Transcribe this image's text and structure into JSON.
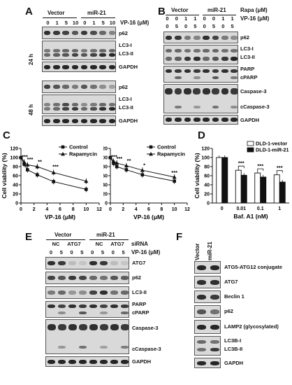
{
  "panels": {
    "A": {
      "label": "A",
      "group_vector": "Vector",
      "group_mir": "miR-21",
      "doses": [
        "0",
        "1",
        "5",
        "10",
        "0",
        "1",
        "5",
        "10"
      ],
      "treatment_label": "VP-16 (μM)",
      "time_24": "24 h",
      "time_48": "48 h",
      "rows_24": [
        "p62",
        "LC3-I",
        "LC3-II",
        "GAPDH"
      ],
      "rows_48": [
        "p62",
        "LC3-I",
        "LC3-II",
        "GAPDH"
      ]
    },
    "B": {
      "label": "B",
      "group_vector": "Vector",
      "group_mir": "miR-21",
      "rapa_label": "Rapa (μM)",
      "rapa": [
        "0",
        "0",
        "1",
        "1",
        "0",
        "0",
        "1",
        "1"
      ],
      "vp_label": "VP-16 (μM)",
      "vp": [
        "0",
        "5",
        "0",
        "5",
        "0",
        "5",
        "0",
        "5"
      ],
      "rows": [
        "p62",
        "LC3-I",
        "LC3-II",
        "PARP",
        "cPARP",
        "Caspase-3",
        "cCaspase-3",
        "GAPDH"
      ]
    },
    "C": {
      "label": "C",
      "ylabel": "Cell viability (%)",
      "xlabel": "VP-16 (μM)"
    },
    "D": {
      "label": "D",
      "ylabel": "Cell viability (%)",
      "xlabel": "Baf. A1 (nM)"
    },
    "E": {
      "label": "E",
      "group_vector": "Vector",
      "group_mir": "miR-21",
      "sirna_label": "siRNA",
      "sirna": [
        "NC",
        "ATG7",
        "NC",
        "ATG7"
      ],
      "vp_label": "VP-16 (μM)",
      "vp": [
        "0",
        "5",
        "0",
        "5",
        "0",
        "5",
        "0",
        "5"
      ],
      "rows": [
        "ATG7",
        "p62",
        "LC3-II",
        "PARP",
        "cPARP",
        "Caspase-3",
        "cCaspase-3",
        "GAPDH"
      ]
    },
    "F": {
      "label": "F",
      "lanes": [
        "Vector",
        "miR-21"
      ],
      "rows": [
        "ATG5-ATG12 conjugate",
        "ATG7",
        "Beclin 1",
        "p62",
        "LAMP2 (glycosylated)",
        "LC3B-I",
        "LC3B-II",
        "GAPDH"
      ]
    }
  },
  "chart_data": [
    {
      "type": "line",
      "xlabel": "VP-16 (μM)",
      "ylabel": "Cell viability (%)",
      "xlim": [
        0,
        12
      ],
      "ylim": [
        0,
        120
      ],
      "xticks": [
        "0",
        "2",
        "4",
        "6",
        "8",
        "10",
        "12"
      ],
      "yticks": [
        "0",
        "20",
        "40",
        "60",
        "80",
        "100",
        "120"
      ],
      "legend_position": "top-right",
      "series": [
        {
          "name": "Control",
          "marker": "square",
          "x": [
            0,
            0.5,
            1,
            2.5,
            5,
            10
          ],
          "y": [
            100,
            85,
            73,
            62,
            47,
            30
          ]
        },
        {
          "name": "Rapamycin",
          "marker": "triangle",
          "x": [
            0,
            0.5,
            1,
            2.5,
            5,
            10
          ],
          "y": [
            100,
            90,
            84,
            80,
            67,
            48
          ]
        }
      ],
      "annotations": [
        "***",
        "***",
        "**",
        "***"
      ]
    },
    {
      "type": "line",
      "xlabel": "VP-16 (μM)",
      "ylabel": "",
      "xlim": [
        0,
        12
      ],
      "ylim": [
        0,
        120
      ],
      "xticks": [
        "0",
        "2",
        "4",
        "6",
        "8",
        "10",
        "12"
      ],
      "yticks": [
        "0",
        "20",
        "40",
        "60",
        "80",
        "100",
        "120"
      ],
      "legend_position": "top-right",
      "series": [
        {
          "name": "Control",
          "marker": "square",
          "x": [
            0,
            0.5,
            1,
            2.5,
            5,
            10
          ],
          "y": [
            100,
            87,
            80,
            73,
            62,
            48
          ]
        },
        {
          "name": "Rapamycin",
          "marker": "triangle",
          "x": [
            0,
            0.5,
            1,
            2.5,
            5,
            10
          ],
          "y": [
            100,
            92,
            88,
            82,
            72,
            57
          ]
        }
      ],
      "annotations": [
        "***",
        "***",
        "**",
        "*",
        "***"
      ]
    },
    {
      "type": "bar",
      "xlabel": "Baf. A1 (nM)",
      "ylabel": "Cell viability (%)",
      "categories": [
        "0",
        "0.01",
        "0.1",
        "1"
      ],
      "ylim": [
        0,
        120
      ],
      "yticks": [
        "0",
        "20",
        "40",
        "60",
        "80",
        "100",
        "120"
      ],
      "legend_position": "top-right",
      "series": [
        {
          "name": "DLD-1-vector",
          "color": "#ffffff",
          "values": [
            100,
            72,
            66,
            62
          ]
        },
        {
          "name": "DLD-1-miR-21",
          "color": "#111111",
          "values": [
            100,
            61,
            57,
            46
          ]
        }
      ],
      "annotations": [
        "***",
        "***",
        "***"
      ]
    }
  ]
}
